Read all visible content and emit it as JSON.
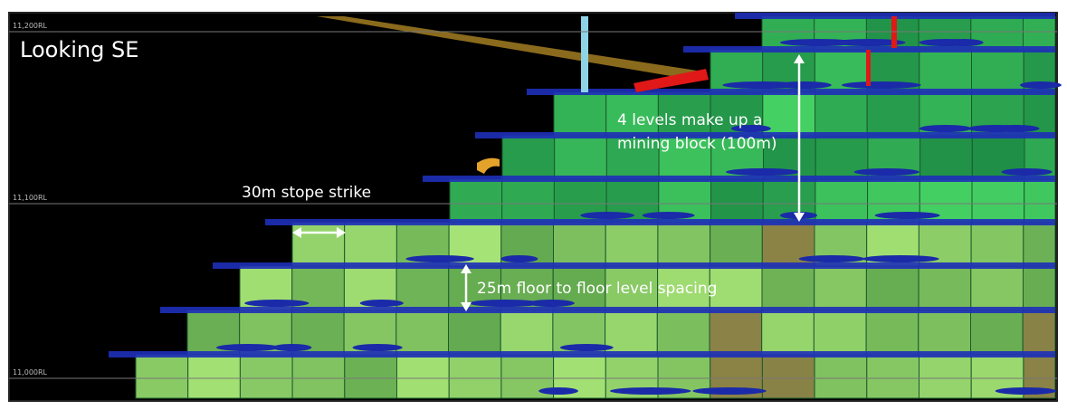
{
  "view_label": "Looking SE",
  "rl_labels": [
    "11,200RL",
    "11,100RL",
    "11,000RL"
  ],
  "annotations": {
    "stope_strike": "30m stope strike",
    "level_spacing": "25m floor to floor level spacing",
    "mining_block": [
      "4 levels make up a",
      "mining block (100m)"
    ]
  }
}
